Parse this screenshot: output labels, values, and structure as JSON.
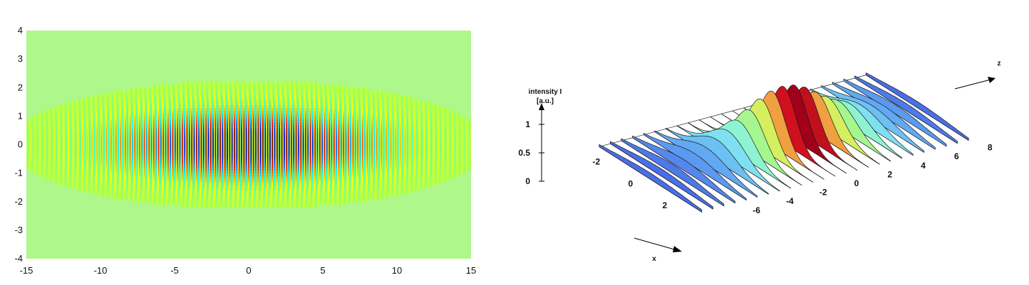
{
  "chart_data": [
    {
      "type": "heatmap",
      "title": "",
      "xlabel": "",
      "ylabel": "",
      "xlim": [
        -15,
        15
      ],
      "ylim": [
        -4,
        4
      ],
      "x_ticks": [
        "-15",
        "-10",
        "-5",
        "0",
        "5",
        "10",
        "15"
      ],
      "y_ticks": [
        "4",
        "3",
        "2",
        "1",
        "0",
        "-1",
        "-2",
        "-3",
        "-4"
      ],
      "colormap": "jet",
      "background_color": "#aef78a",
      "fringe_spacing": 0.32,
      "envelope_width_x": 9,
      "envelope_width_y": 1.25
    },
    {
      "type": "area",
      "title": "",
      "zlabel": "intensity I",
      "zunit": "[a.u.]",
      "xlabel": "x",
      "zaxis_label": "z",
      "z_ticks": [
        "-6",
        "-4",
        "-2",
        "0",
        "2",
        "4",
        "6",
        "8"
      ],
      "x_ticks": [
        "-2",
        "0",
        "2"
      ],
      "i_ticks": [
        "0",
        "0.5",
        "1"
      ],
      "xlim": [
        -3,
        3
      ],
      "zlim": [
        -8,
        8
      ],
      "ilim": [
        0,
        1
      ],
      "z": [
        -8.0,
        -7.33,
        -6.67,
        -6.0,
        -5.33,
        -4.67,
        -4.0,
        -3.33,
        -2.67,
        -2.0,
        -1.33,
        -0.67,
        0.0,
        0.67,
        1.33,
        2.0,
        2.67,
        3.33,
        4.0,
        4.67,
        5.33,
        6.0,
        6.67,
        7.33,
        8.0
      ],
      "peak_intensity": [
        0.11,
        0.13,
        0.16,
        0.19,
        0.24,
        0.3,
        0.38,
        0.48,
        0.6,
        0.74,
        0.88,
        0.97,
        1.0,
        0.97,
        0.88,
        0.74,
        0.6,
        0.48,
        0.38,
        0.3,
        0.24,
        0.19,
        0.16,
        0.13,
        0.11
      ],
      "colors": [
        "#4a6ee6",
        "#4a6ee6",
        "#4d7ae8",
        "#5588ee",
        "#5b9af0",
        "#62a8f2",
        "#6cc0f2",
        "#7ee0f0",
        "#8ef3d0",
        "#a6f690",
        "#d4f060",
        "#f0a040",
        "#d0101e",
        "#a0001a",
        "#c0101e",
        "#f0a040",
        "#d4f060",
        "#a6f690",
        "#8ef3d0",
        "#7ee0f0",
        "#6cc0f2",
        "#62a8f2",
        "#5b9af0",
        "#4d7ae8",
        "#4a6ee6"
      ]
    }
  ]
}
